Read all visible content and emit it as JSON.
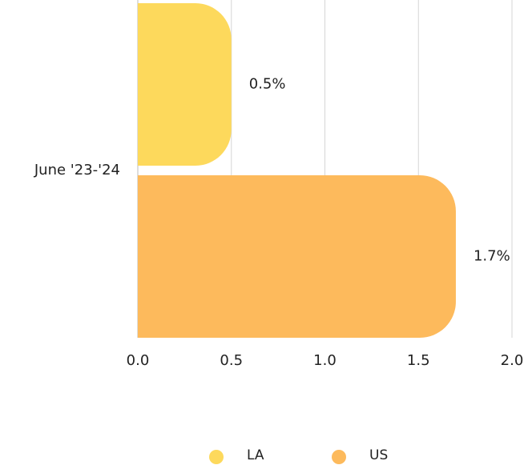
{
  "chart_data": {
    "type": "barh",
    "categories": [
      "June '23-'24"
    ],
    "series": [
      {
        "name": "LA",
        "color": "#fdd95c",
        "values": [
          0.5
        ],
        "value_labels": [
          "0.5%"
        ]
      },
      {
        "name": "US",
        "color": "#fdba5c",
        "values": [
          1.7
        ],
        "value_labels": [
          "1.7%"
        ]
      }
    ],
    "xlim": [
      0,
      2
    ],
    "xticks": [
      {
        "value": 0,
        "label": "0.0"
      },
      0.5,
      {
        "value": 1,
        "label": "1.0"
      },
      1.5,
      {
        "value": 2,
        "label": "2.0"
      }
    ],
    "grid": true
  }
}
